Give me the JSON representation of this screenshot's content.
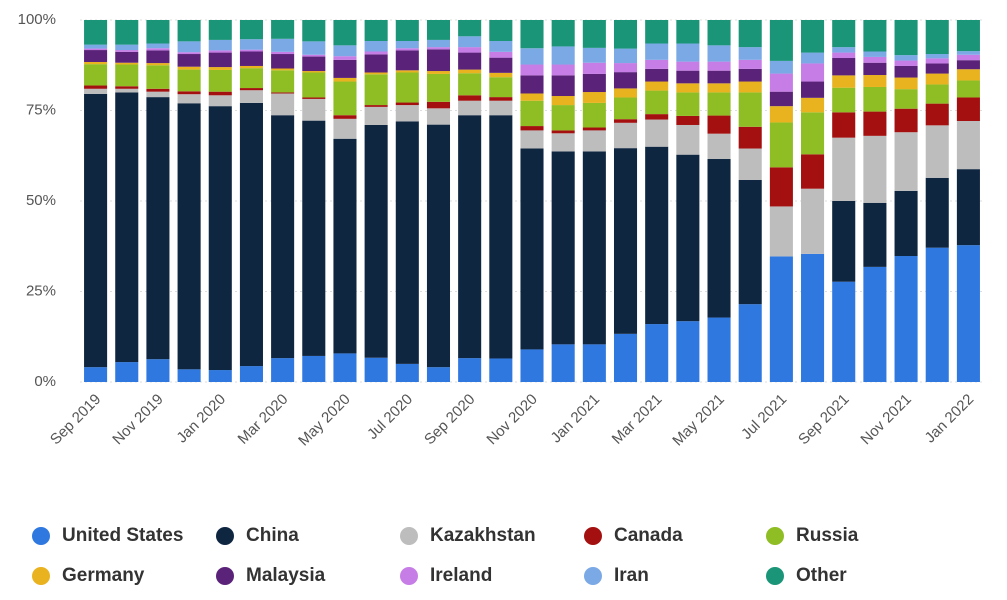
{
  "chart_data": {
    "type": "stacked_bar_100",
    "categories": [
      "Sep 2019",
      null,
      "Nov 2019",
      null,
      "Jan 2020",
      null,
      "Mar 2020",
      null,
      "May 2020",
      null,
      "Jul 2020",
      null,
      "Sep 2020",
      null,
      "Nov 2020",
      null,
      "Jan 2021",
      null,
      "Mar 2021",
      null,
      "May 2021",
      null,
      "Jul 2021",
      null,
      "Sep 2021",
      null,
      "Nov 2021",
      null,
      "Jan 2022"
    ],
    "ylim": [
      0,
      100
    ],
    "yticks": [
      {
        "value": 0,
        "label": "0%"
      },
      {
        "value": 25,
        "label": "25%"
      },
      {
        "value": 50,
        "label": "50%"
      },
      {
        "value": 75,
        "label": "75%"
      },
      {
        "value": 100,
        "label": "100%"
      }
    ],
    "grid": true,
    "legend": "bottom",
    "series": [
      {
        "name": "United States",
        "color": "#2e78e0",
        "values": [
          4.1,
          5.5,
          6.3,
          3.5,
          3.3,
          4.4,
          6.6,
          7.2,
          7.9,
          6.7,
          5,
          4.1,
          6.6,
          6.5,
          9,
          10.4,
          10.4,
          13.3,
          16,
          16.8,
          17.8,
          21.5,
          34.7,
          35.4,
          27.7,
          31.8,
          34.8,
          37.1,
          37.8
        ]
      },
      {
        "name": "China",
        "color": "#0f2641",
        "values": [
          75.5,
          74.5,
          72.4,
          73.5,
          72.9,
          72.7,
          67.1,
          65,
          59.3,
          64.3,
          67,
          67,
          67.1,
          67.2,
          55.5,
          53.3,
          53.3,
          51.3,
          49,
          46,
          43.8,
          34.3,
          0,
          0,
          22.3,
          17.7,
          18,
          19.3,
          21
        ]
      },
      {
        "name": "Kazakhstan",
        "color": "#bdbdbd",
        "values": [
          1.4,
          1,
          1.5,
          2.5,
          3,
          3.5,
          6,
          6,
          5.5,
          5,
          4.5,
          4.5,
          4,
          4,
          5,
          5,
          5.8,
          7,
          7.5,
          8.2,
          7,
          8.7,
          13.8,
          18,
          17.5,
          18.5,
          16.2,
          14.5,
          13.3
        ]
      },
      {
        "name": "Canada",
        "color": "#a3100f",
        "values": [
          0.9,
          0.7,
          0.8,
          0.8,
          1,
          0.6,
          0.3,
          0.4,
          1,
          0.5,
          0.7,
          1.8,
          1.5,
          1,
          1.2,
          0.8,
          0.8,
          1,
          1.5,
          2.5,
          5,
          6,
          10.8,
          9.5,
          7,
          6.7,
          6.5,
          6,
          6.5
        ]
      },
      {
        "name": "Russia",
        "color": "#8fbd24",
        "values": [
          5.9,
          6,
          6.5,
          6,
          6,
          5.5,
          6.1,
          6.9,
          9.3,
          8.5,
          8.3,
          7.7,
          6.1,
          5.5,
          7,
          7,
          6.8,
          6,
          6.5,
          6.5,
          6.4,
          9.5,
          12.4,
          11.6,
          6.8,
          6.8,
          5.4,
          5.3,
          4.7
        ]
      },
      {
        "name": "Germany",
        "color": "#e9b21f",
        "values": [
          0.6,
          0.5,
          0.6,
          0.8,
          0.8,
          0.6,
          0.5,
          0.4,
          1,
          0.5,
          0.6,
          0.8,
          1,
          1.2,
          2,
          2.5,
          3,
          2.5,
          2.5,
          2.5,
          2.5,
          3,
          4.5,
          4,
          3.4,
          3.3,
          3.2,
          3,
          3.1
        ]
      },
      {
        "name": "Malaysia",
        "color": "#5a2379",
        "values": [
          3.3,
          3,
          3.5,
          3.5,
          4,
          4,
          4,
          4,
          5,
          5,
          5.5,
          6,
          4.7,
          4.2,
          5,
          5.7,
          5,
          4.5,
          3.5,
          3.5,
          3.5,
          3.5,
          4,
          4.5,
          4.8,
          3.4,
          3.2,
          2.8,
          2.5
        ]
      },
      {
        "name": "Ireland",
        "color": "#c67de6",
        "values": [
          0.4,
          0.5,
          0.6,
          0.5,
          0.6,
          0.5,
          0.6,
          0.5,
          1,
          0.8,
          0.6,
          0.6,
          1.5,
          1.6,
          3,
          3,
          3.1,
          2.5,
          2.5,
          2.5,
          2.5,
          2.5,
          5,
          5,
          1.5,
          1.6,
          1.5,
          1.4,
          1.5
        ]
      },
      {
        "name": "Iran",
        "color": "#7aa9e6",
        "values": [
          1.1,
          1.5,
          1.3,
          3,
          2.9,
          2.9,
          3.6,
          3.7,
          3,
          2.9,
          2,
          2,
          3,
          3,
          4.5,
          5,
          4.1,
          4,
          4.5,
          5,
          4.5,
          3.5,
          3.5,
          3,
          1.5,
          1.5,
          1.5,
          1.2,
          1
        ]
      },
      {
        "name": "Other",
        "color": "#1a9577",
        "values": [
          6.8,
          6.8,
          6.5,
          5.9,
          5.5,
          5.3,
          5.2,
          5.9,
          7,
          5.8,
          5.8,
          5.5,
          4.5,
          5.8,
          7.8,
          7.3,
          7.7,
          7.9,
          6.5,
          6.5,
          7,
          7.5,
          11.3,
          9,
          7.5,
          8.7,
          9.7,
          9.4,
          8.6
        ]
      }
    ]
  }
}
